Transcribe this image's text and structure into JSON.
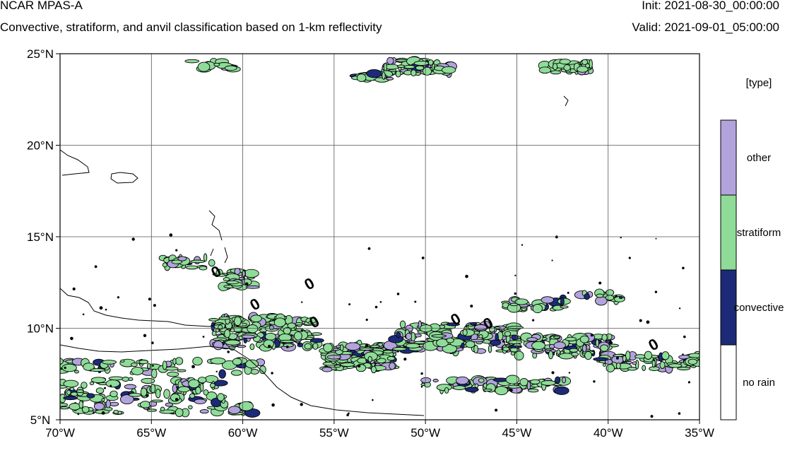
{
  "header": {
    "model": "NCAR MPAS-A",
    "subtitle": "Convective, stratiform, and anvil classification based on 1-km reflectivity",
    "init": "Init: 2021-08-30_00:00:00",
    "valid": "Valid: 2021-09-01_05:00:00"
  },
  "map": {
    "lon_range": [
      -70,
      -35
    ],
    "lat_range": [
      5,
      25
    ],
    "lon_ticks": [
      {
        "value": -70,
        "label": "70°W"
      },
      {
        "value": -65,
        "label": "65°W"
      },
      {
        "value": -60,
        "label": "60°W"
      },
      {
        "value": -55,
        "label": "55°W"
      },
      {
        "value": -50,
        "label": "50°W"
      },
      {
        "value": -45,
        "label": "45°W"
      },
      {
        "value": -40,
        "label": "40°W"
      },
      {
        "value": -35,
        "label": "35°W"
      }
    ],
    "lat_ticks": [
      {
        "value": 25,
        "label": "25°N"
      },
      {
        "value": 20,
        "label": "20°N"
      },
      {
        "value": 15,
        "label": "15°N"
      },
      {
        "value": 10,
        "label": "10°N"
      },
      {
        "value": 5,
        "label": "5°N"
      }
    ],
    "gridlines": true,
    "contour_labels": [
      "0",
      "0",
      "0",
      "0",
      "0",
      "0",
      "0"
    ]
  },
  "legend": {
    "title": "[type]",
    "entries": [
      {
        "label": "other",
        "color": "#b3a3dd"
      },
      {
        "label": "stratiform",
        "color": "#8edc98"
      },
      {
        "label": "convective",
        "color": "#1c2a78"
      },
      {
        "label": "no rain",
        "color": "#ffffff"
      }
    ]
  }
}
